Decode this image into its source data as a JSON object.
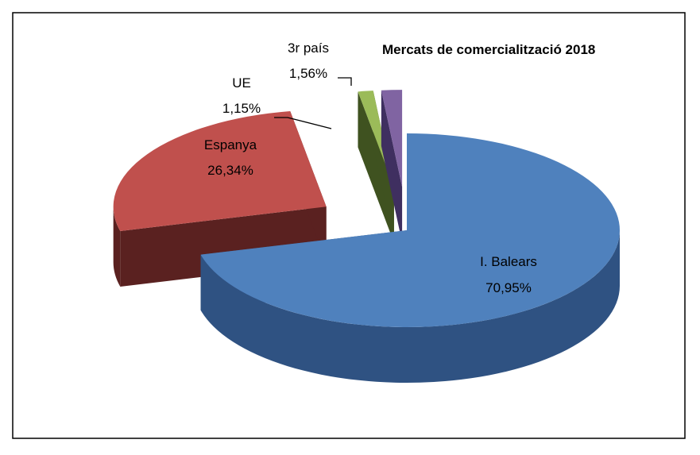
{
  "chart_data": {
    "type": "pie",
    "title": "Mercats de comercialització 2018",
    "categories": [
      "I. Balears",
      "Espanya",
      "UE",
      "3r país"
    ],
    "values": [
      70.95,
      26.34,
      1.15,
      1.56
    ],
    "value_labels": [
      "70,95%",
      "26,34%",
      "1,15%",
      "1,56%"
    ],
    "colors": [
      "#4f81bd",
      "#c0504d",
      "#9bbb59",
      "#8064a2"
    ],
    "side_colors": [
      "#2f5282",
      "#5a2120",
      "#3f5220",
      "#3f2f60"
    ]
  }
}
